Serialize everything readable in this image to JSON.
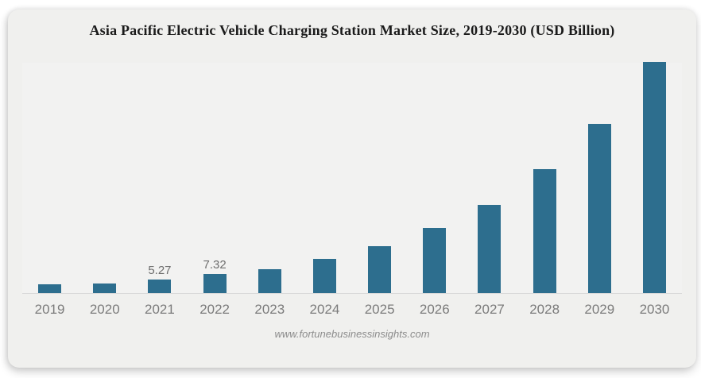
{
  "card": {
    "title": "Asia Pacific Electric Vehicle Charging Station Market Size, 2019-2030 (USD Billion)",
    "watermark": "www.fortunebusinessinsights.com"
  },
  "colors": {
    "bar": "#2d6e8e",
    "card_bg": "#f0f0ee",
    "plot_bg": "#f2f2f1",
    "axis_line": "#d8d8d8",
    "tick_label": "#7b7b7b",
    "data_label": "#6e6e6e",
    "title_text": "#1b1b1b",
    "watermark_text": "#8c8c8c"
  },
  "chart_data": {
    "type": "bar",
    "title": "Asia Pacific Electric Vehicle Charging Station Market Size, 2019-2030 (USD Billion)",
    "categories": [
      "2019",
      "2020",
      "2021",
      "2022",
      "2023",
      "2024",
      "2025",
      "2026",
      "2027",
      "2028",
      "2029",
      "2030"
    ],
    "values": [
      3.4,
      3.7,
      5.27,
      7.32,
      9.4,
      13.2,
      18.3,
      25.4,
      34.4,
      48.4,
      66.0,
      90.2
    ],
    "data_labels": [
      "",
      "",
      "5.27",
      "7.32",
      "",
      "",
      "",
      "",
      "",
      "",
      "",
      ""
    ],
    "xlabel": "",
    "ylabel": "",
    "ylim": [
      0,
      92
    ],
    "grid": false,
    "legend": "none",
    "note": "Only 2021 (5.27) and 2022 (7.32) carry visible data labels; remaining values estimated from bar heights."
  }
}
